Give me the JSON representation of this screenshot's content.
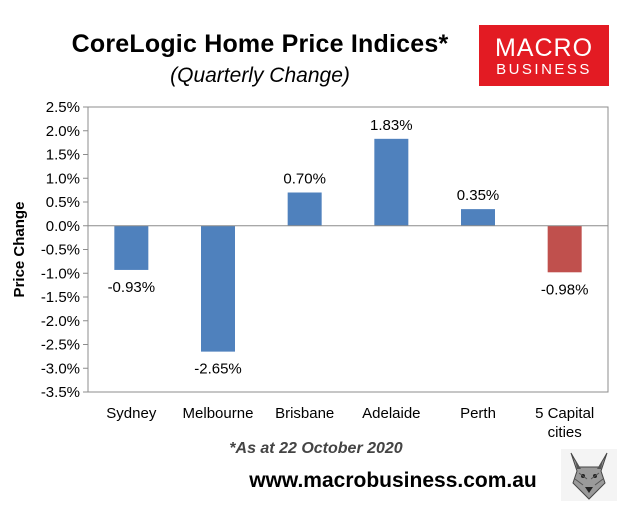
{
  "header": {
    "title": "CoreLogic Home Price Indices*",
    "subtitle": "(Quarterly Change)"
  },
  "logo": {
    "line1": "MACRO",
    "line2": "BUSINESS"
  },
  "footer": {
    "note": "*As at 22 October 2020",
    "website": "www.macrobusiness.com.au",
    "mascot": "wolf-icon"
  },
  "colors": {
    "positive": "#4f81bd",
    "negative": "#c0504d"
  },
  "chart_data": {
    "type": "bar",
    "categories": [
      [
        "Sydney"
      ],
      [
        "Melbourne"
      ],
      [
        "Brisbane"
      ],
      [
        "Adelaide"
      ],
      [
        "Perth"
      ],
      [
        "5 Capital",
        "cities"
      ]
    ],
    "values": [
      -0.93,
      -2.65,
      0.7,
      1.83,
      0.35,
      -0.98
    ],
    "data_labels": [
      "-0.93%",
      "-2.65%",
      "0.70%",
      "1.83%",
      "0.35%",
      "-0.98%"
    ],
    "bar_colors": [
      "#4f81bd",
      "#4f81bd",
      "#4f81bd",
      "#4f81bd",
      "#4f81bd",
      "#c0504d"
    ],
    "ylabel": "Price Change",
    "ylim": [
      -3.5,
      2.5
    ],
    "yticks": [
      2.5,
      2.0,
      1.5,
      1.0,
      0.5,
      0.0,
      -0.5,
      -1.0,
      -1.5,
      -2.0,
      -2.5,
      -3.0,
      -3.5
    ],
    "ytick_labels": [
      "2.5%",
      "2.0%",
      "1.5%",
      "1.0%",
      "0.5%",
      "0.0%",
      "-0.5%",
      "-1.0%",
      "-1.5%",
      "-2.0%",
      "-2.5%",
      "-3.0%",
      "-3.5%"
    ],
    "grid": false,
    "legend": false
  }
}
